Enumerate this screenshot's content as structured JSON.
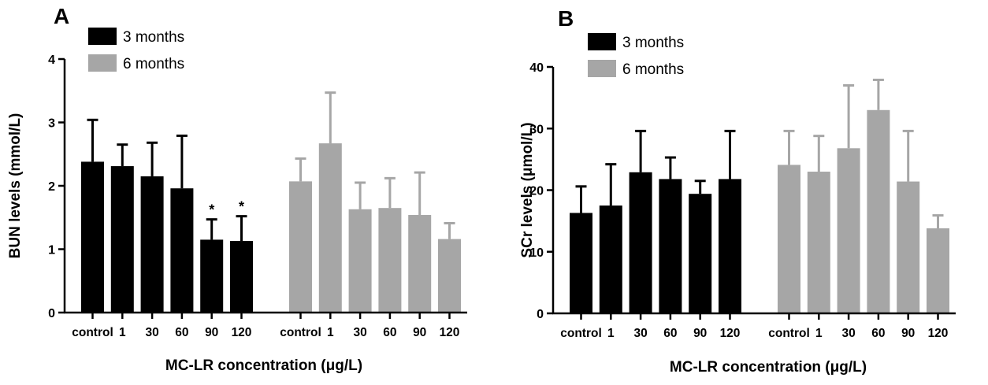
{
  "chart_data": [
    {
      "panel_label": "A",
      "type": "bar",
      "ylabel": "BUN levels (mmol/L)",
      "xlabel": "MC-LR concentration (μg/L)",
      "ylim": [
        0,
        4
      ],
      "yticks": [
        "0",
        "1",
        "2",
        "3",
        "4"
      ],
      "legend": {
        "position": "top-left",
        "entries": [
          "3 months",
          "6 months"
        ]
      },
      "series": [
        {
          "name": "3 months",
          "color": "#000000",
          "categories": [
            "control",
            "1",
            "30",
            "60",
            "90",
            "120"
          ],
          "values": [
            2.38,
            2.31,
            2.15,
            1.96,
            1.15,
            1.13
          ],
          "errors": [
            0.66,
            0.34,
            0.53,
            0.83,
            0.32,
            0.39
          ],
          "annotations": [
            "",
            "",
            "",
            "",
            "*",
            "*"
          ]
        },
        {
          "name": "6 months",
          "color": "#a6a6a6",
          "categories": [
            "control",
            "1",
            "30",
            "60",
            "90",
            "120"
          ],
          "values": [
            2.07,
            2.67,
            1.63,
            1.65,
            1.54,
            1.16
          ],
          "errors": [
            0.36,
            0.8,
            0.42,
            0.47,
            0.67,
            0.25
          ],
          "annotations": [
            "",
            "",
            "",
            "",
            "",
            ""
          ]
        }
      ]
    },
    {
      "panel_label": "B",
      "type": "bar",
      "ylabel": "SCr levels (μmol/L)",
      "xlabel": "MC-LR concentration (μg/L)",
      "ylim": [
        0,
        40
      ],
      "yticks": [
        "0",
        "10",
        "20",
        "30",
        "40"
      ],
      "legend": {
        "position": "top-left",
        "entries": [
          "3 months",
          "6 months"
        ]
      },
      "series": [
        {
          "name": "3 months",
          "color": "#000000",
          "categories": [
            "control",
            "1",
            "30",
            "60",
            "90",
            "120"
          ],
          "values": [
            16.3,
            17.5,
            22.9,
            21.8,
            19.4,
            21.8
          ],
          "errors": [
            4.3,
            6.7,
            6.7,
            3.5,
            2.1,
            7.8
          ],
          "annotations": [
            "",
            "",
            "",
            "",
            "",
            ""
          ]
        },
        {
          "name": "6 months",
          "color": "#a6a6a6",
          "categories": [
            "control",
            "1",
            "30",
            "60",
            "90",
            "120"
          ],
          "values": [
            24.1,
            23.0,
            26.8,
            33.0,
            21.4,
            13.8
          ],
          "errors": [
            5.5,
            5.8,
            10.2,
            4.9,
            8.2,
            2.1
          ],
          "annotations": [
            "",
            "",
            "",
            "",
            "",
            ""
          ]
        }
      ]
    }
  ]
}
